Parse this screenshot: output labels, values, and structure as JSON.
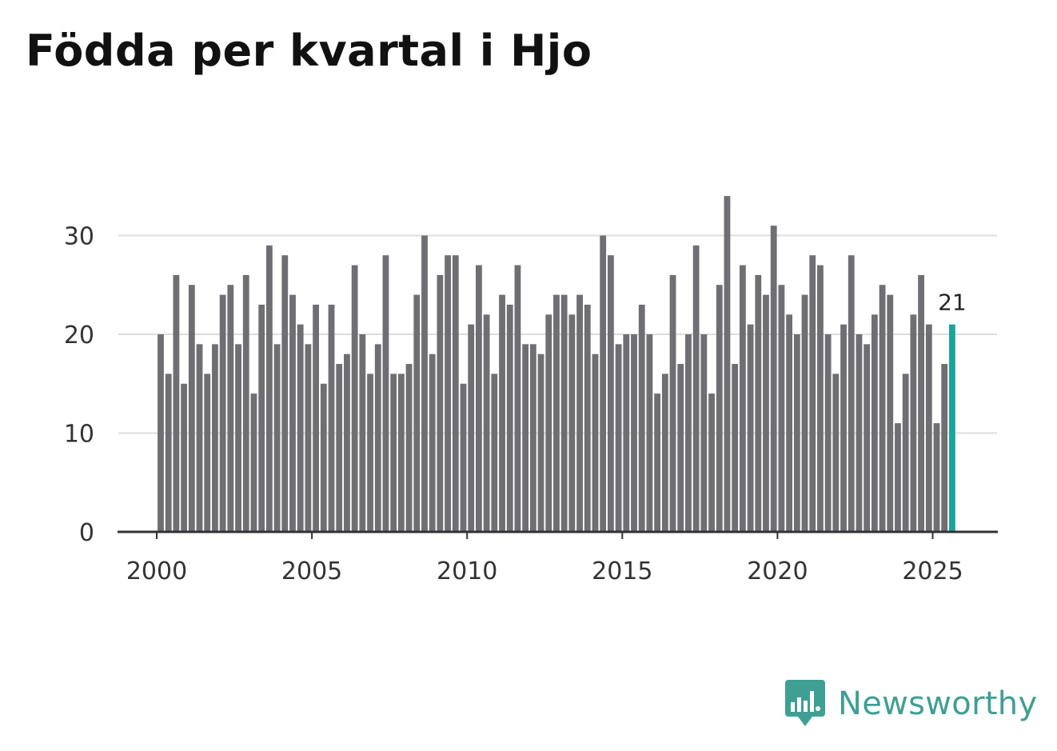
{
  "title": "Födda per kvartal i Hjo",
  "brand": {
    "name": "Newsworthy",
    "color": "#3f9f93",
    "icon": "newsworthy-logo-icon"
  },
  "colors": {
    "bar": "#6e6e73",
    "highlight": "#1aa59a",
    "grid": "#dddddd",
    "axis": "#333333"
  },
  "chart_data": {
    "type": "bar",
    "title": "Födda per kvartal i Hjo",
    "xlabel": "",
    "ylabel": "",
    "ylim": [
      0,
      35
    ],
    "yticks": [
      0,
      10,
      20,
      30
    ],
    "xticks": [
      "2000",
      "2005",
      "2010",
      "2015",
      "2020",
      "2025"
    ],
    "start": {
      "year": 2000,
      "quarter": 1
    },
    "grid": true,
    "highlight_last": true,
    "last_label": "21",
    "values": [
      20,
      16,
      26,
      15,
      25,
      19,
      16,
      19,
      24,
      25,
      19,
      26,
      14,
      23,
      29,
      19,
      28,
      24,
      21,
      19,
      23,
      15,
      23,
      17,
      18,
      27,
      20,
      16,
      19,
      28,
      16,
      16,
      17,
      24,
      30,
      18,
      26,
      28,
      28,
      15,
      21,
      27,
      22,
      16,
      24,
      23,
      27,
      19,
      19,
      18,
      22,
      24,
      24,
      22,
      24,
      23,
      18,
      30,
      28,
      19,
      20,
      20,
      23,
      20,
      14,
      16,
      26,
      17,
      20,
      29,
      20,
      14,
      25,
      34,
      17,
      27,
      21,
      26,
      24,
      31,
      25,
      22,
      20,
      24,
      28,
      27,
      20,
      16,
      21,
      28,
      20,
      19,
      22,
      25,
      24,
      11,
      16,
      22,
      26,
      21,
      11,
      17,
      21
    ]
  }
}
